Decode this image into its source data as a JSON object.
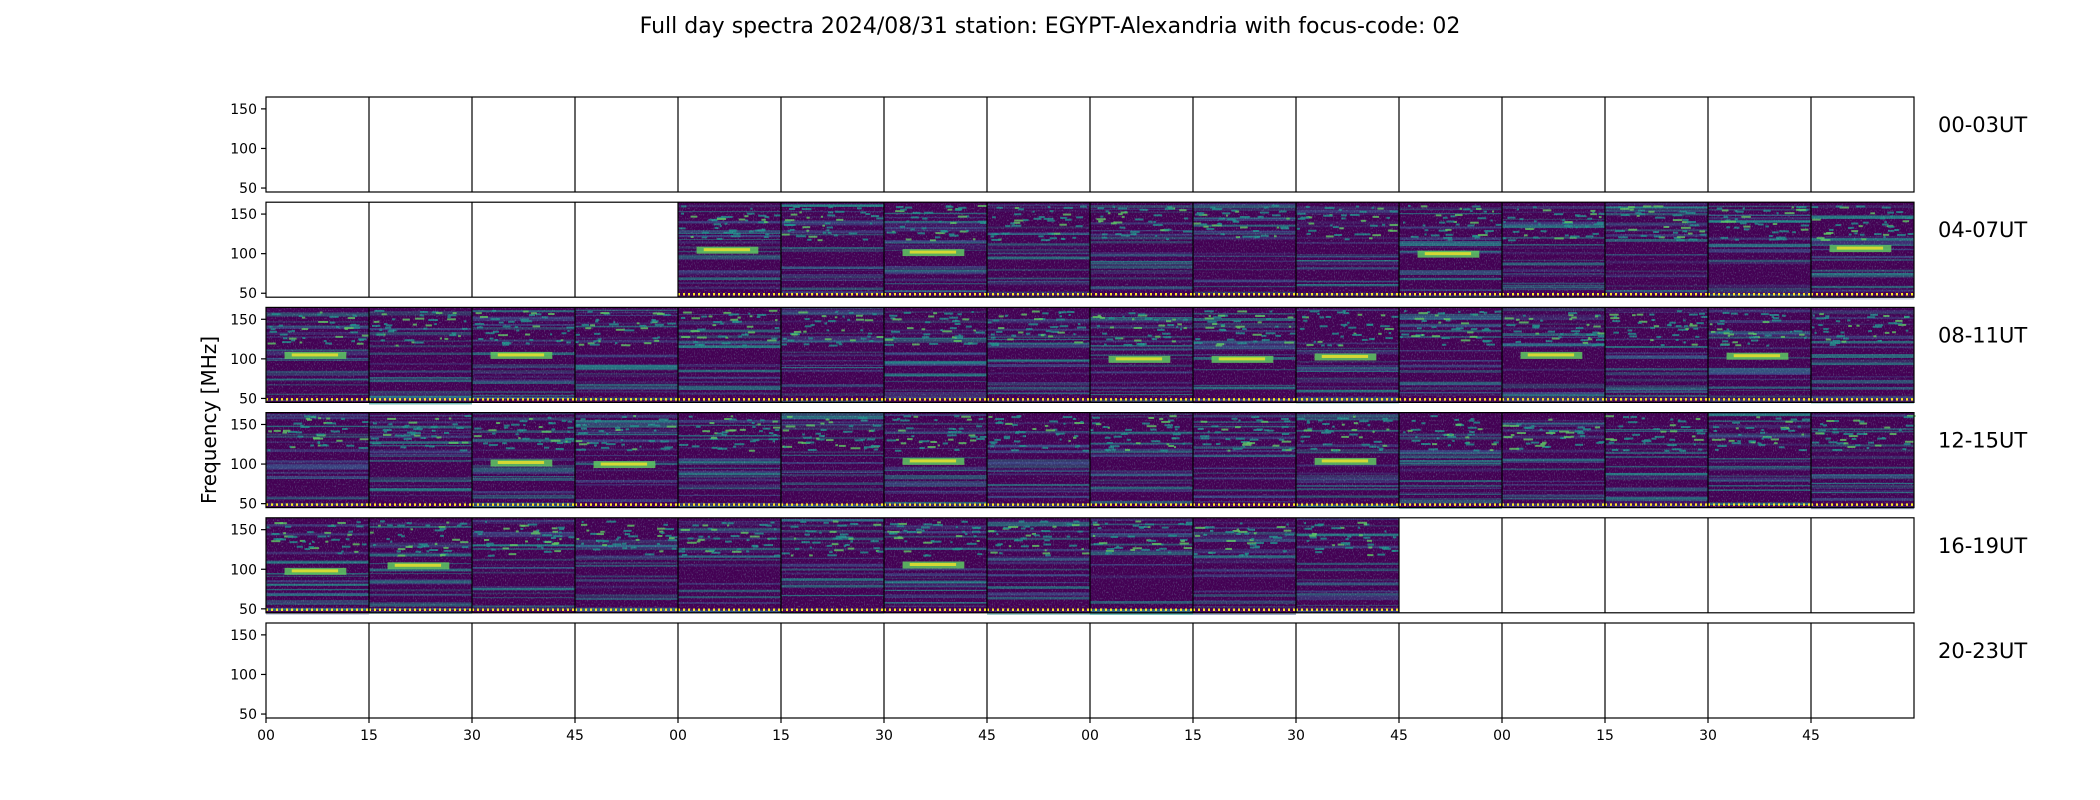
{
  "chart_data": {
    "type": "heatmap",
    "title": "Full day spectra 2024/08/31 station: EGYPT-Alexandria with focus-code: 02",
    "ylabel": "Frequency [MHz]",
    "xlabel": "",
    "ylim": [
      45,
      165
    ],
    "y_ticks": [
      "150",
      "100",
      "50"
    ],
    "x_tick_labels": [
      "00",
      "15",
      "30",
      "45",
      "00",
      "15",
      "30",
      "45",
      "00",
      "15",
      "30",
      "45",
      "00",
      "15",
      "30",
      "45"
    ],
    "colormap": "viridis",
    "colors": {
      "background": "#440154",
      "mid": "#3b528b",
      "teal": "#21918c",
      "green": "#5ec962",
      "bright": "#fde725"
    },
    "rows": [
      {
        "label": "00-03UT",
        "panels": [
          0,
          0,
          0,
          0,
          0,
          0,
          0,
          0,
          0,
          0,
          0,
          0,
          0,
          0,
          0,
          0
        ],
        "bright_band_mhz": [
          null,
          null,
          null,
          null,
          null,
          null,
          null,
          null,
          null,
          null,
          null,
          null,
          null,
          null,
          null,
          null
        ]
      },
      {
        "label": "04-07UT",
        "panels": [
          0,
          0,
          0,
          0,
          1,
          1,
          1,
          1,
          1,
          1,
          1,
          1,
          1,
          1,
          1,
          1
        ],
        "bright_band_mhz": [
          null,
          null,
          null,
          null,
          105,
          null,
          102,
          null,
          null,
          null,
          null,
          100,
          null,
          null,
          null,
          107
        ]
      },
      {
        "label": "08-11UT",
        "panels": [
          1,
          1,
          1,
          1,
          1,
          1,
          1,
          1,
          1,
          1,
          1,
          1,
          1,
          1,
          1,
          1
        ],
        "bright_band_mhz": [
          105,
          null,
          105,
          null,
          null,
          null,
          null,
          null,
          100,
          100,
          103,
          null,
          105,
          null,
          104,
          null
        ]
      },
      {
        "label": "12-15UT",
        "panels": [
          1,
          1,
          1,
          1,
          1,
          1,
          1,
          1,
          1,
          1,
          1,
          1,
          1,
          1,
          1,
          1
        ],
        "bright_band_mhz": [
          null,
          null,
          102,
          100,
          null,
          null,
          104,
          null,
          null,
          null,
          104,
          null,
          null,
          null,
          null,
          null
        ]
      },
      {
        "label": "16-19UT",
        "panels": [
          1,
          1,
          1,
          1,
          1,
          1,
          1,
          1,
          1,
          1,
          1,
          0,
          0,
          0,
          0,
          0
        ],
        "bright_band_mhz": [
          98,
          105,
          null,
          null,
          null,
          null,
          106,
          null,
          null,
          null,
          null,
          null,
          null,
          null,
          null,
          null
        ]
      },
      {
        "label": "20-23UT",
        "panels": [
          0,
          0,
          0,
          0,
          0,
          0,
          0,
          0,
          0,
          0,
          0,
          0,
          0,
          0,
          0,
          0
        ],
        "bright_band_mhz": [
          null,
          null,
          null,
          null,
          null,
          null,
          null,
          null,
          null,
          null,
          null,
          null,
          null,
          null,
          null,
          null
        ]
      }
    ]
  }
}
